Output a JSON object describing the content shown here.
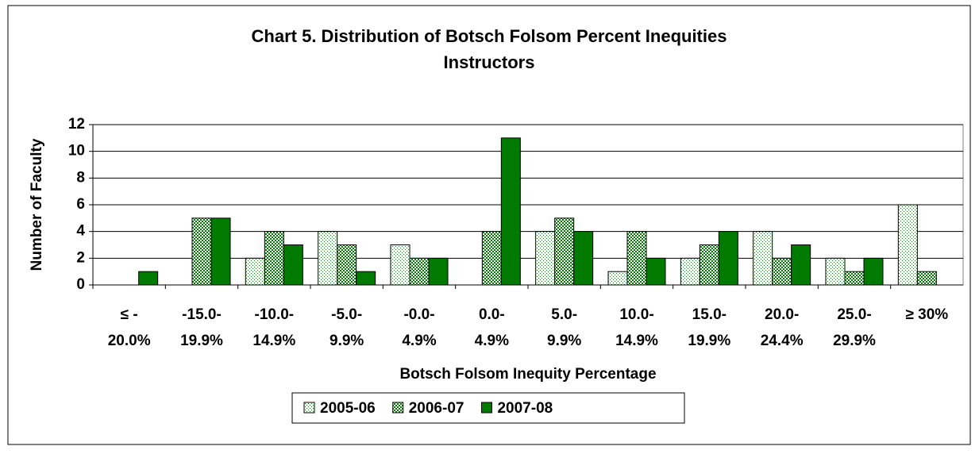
{
  "chart_data": {
    "type": "bar",
    "title": "Chart 5. Distribution of Botsch Folsom Percent Inequities",
    "subtitle": "Instructors",
    "y_label": "Number of Faculty",
    "x_label": "Botsch Folsom Inequity Percentage",
    "categories": [
      [
        "≤ -",
        "20.0%"
      ],
      [
        "-15.0-",
        "19.9%"
      ],
      [
        "-10.0-",
        "14.9%"
      ],
      [
        "-5.0-",
        "9.9%"
      ],
      [
        "-0.0-",
        "4.9%"
      ],
      [
        "0.0-",
        "4.9%"
      ],
      [
        "5.0-",
        "9.9%"
      ],
      [
        "10.0-",
        "14.9%"
      ],
      [
        "15.0-",
        "19.9%"
      ],
      [
        "20.0-",
        "24.4%"
      ],
      [
        "25.0-",
        "29.9%"
      ],
      [
        "≥ 30%"
      ]
    ],
    "series": [
      {
        "name": "2005-06",
        "color": "#008000",
        "pattern": "dots",
        "values": [
          0,
          0,
          2,
          4,
          3,
          0,
          4,
          1,
          2,
          4,
          2,
          6
        ]
      },
      {
        "name": "2006-07",
        "color": "#008000",
        "pattern": "checks",
        "values": [
          0,
          5,
          4,
          3,
          2,
          4,
          5,
          4,
          3,
          2,
          1,
          1
        ]
      },
      {
        "name": "2007-08",
        "color": "#007a00",
        "pattern": "solid",
        "values": [
          1,
          5,
          3,
          1,
          2,
          11,
          4,
          2,
          4,
          3,
          2,
          0
        ]
      }
    ],
    "ylim": [
      0,
      12
    ],
    "yticks": [
      0,
      2,
      4,
      6,
      8,
      10,
      12
    ],
    "grid": true,
    "legend": "bottom"
  }
}
